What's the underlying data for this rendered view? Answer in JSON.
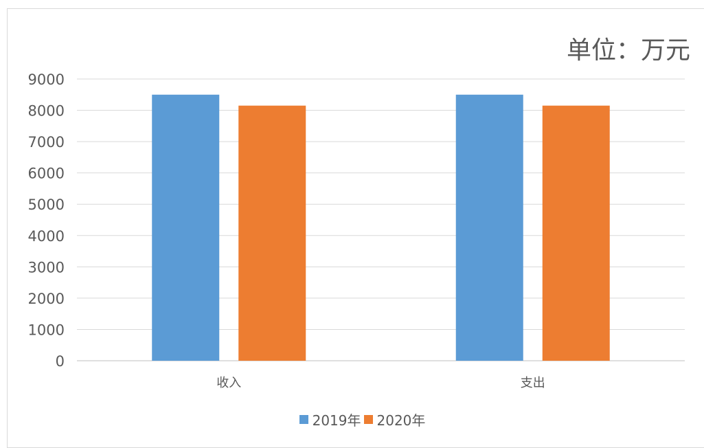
{
  "chart_data": {
    "type": "bar",
    "title": "",
    "unit_label": "单位：万元",
    "xlabel": "",
    "ylabel": "",
    "categories": [
      "收入",
      "支出"
    ],
    "series": [
      {
        "name": "2019年",
        "values": [
          8500,
          8500
        ],
        "color": "#5b9bd5"
      },
      {
        "name": "2020年",
        "values": [
          8150,
          8150
        ],
        "color": "#ed7d31"
      }
    ],
    "y_ticks": [
      "0",
      "1000",
      "2000",
      "3000",
      "4000",
      "5000",
      "6000",
      "7000",
      "8000",
      "9000"
    ],
    "ylim": [
      0,
      9000
    ],
    "grid": true,
    "legend_position": "bottom"
  }
}
